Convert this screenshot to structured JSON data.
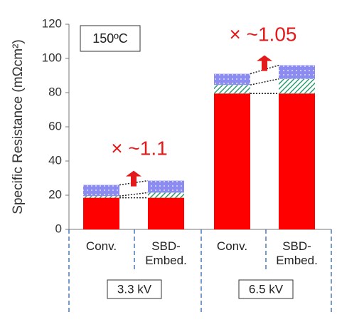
{
  "chart_data": {
    "type": "stacked_bar",
    "y_label": "Specific Resistance (mΩcm²)",
    "categories": [
      "Conv.",
      "SBD-\nEmbed.",
      "Conv.",
      "SBD-\nEmbed."
    ],
    "groups": [
      "3.3 kV",
      "6.5 kV"
    ],
    "series": [
      {
        "color": "#ff0000",
        "pattern": "solid",
        "values": [
          18.5,
          18.5,
          79.5,
          79.5
        ]
      },
      {
        "color": "#2e9f6e",
        "pattern": "hatch",
        "values": [
          1,
          3,
          5,
          8.5
        ]
      },
      {
        "color": "#8c8cf0",
        "pattern": "dots",
        "values": [
          6.5,
          7,
          6.5,
          8
        ]
      }
    ],
    "ylim": [
      0,
      120
    ],
    "yticks": [
      0,
      20,
      40,
      60,
      80,
      100,
      120
    ],
    "annotations": [
      "150ºC",
      "× ~1.1",
      "× ~1.05"
    ]
  }
}
